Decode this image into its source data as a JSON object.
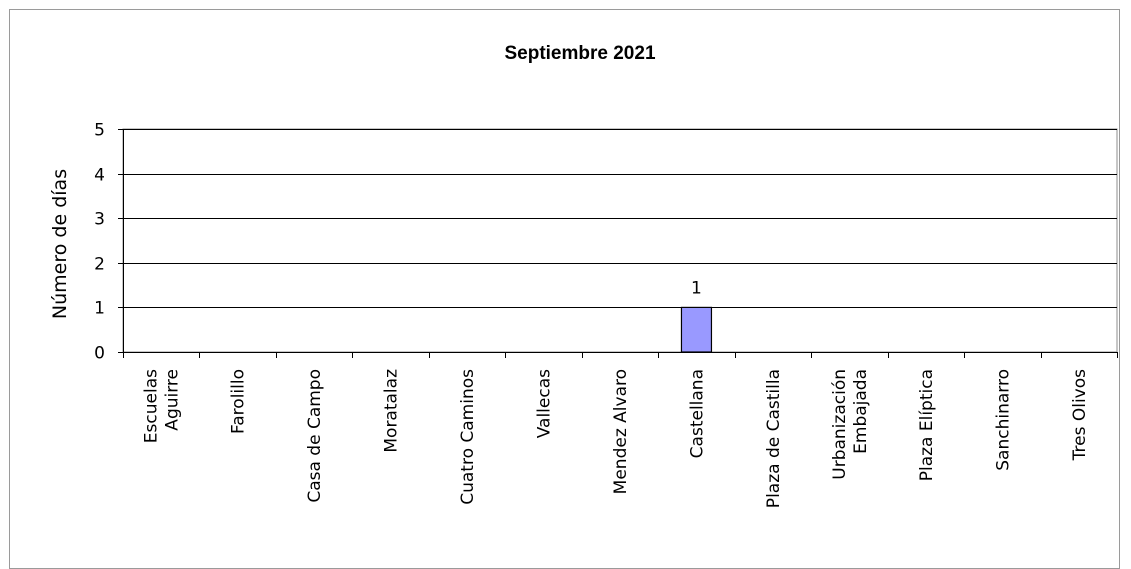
{
  "chart_data": {
    "type": "bar",
    "title": "Septiembre 2021",
    "xlabel": "",
    "ylabel": "Número de días",
    "ylim": [
      0,
      5
    ],
    "yticks": [
      0,
      1,
      2,
      3,
      4,
      5
    ],
    "grid": true,
    "legend": "none",
    "bar_color": "#9999ff",
    "categories": [
      [
        "Escuelas",
        "Aguirre"
      ],
      [
        "Farolillo"
      ],
      [
        "Casa de Campo"
      ],
      [
        "Moratalaz"
      ],
      [
        "Cuatro Caminos"
      ],
      [
        "Vallecas"
      ],
      [
        "Mendez Alvaro"
      ],
      [
        "Castellana"
      ],
      [
        "Plaza de Castilla"
      ],
      [
        "Urbanización",
        "Embajada"
      ],
      [
        "Plaza Elíptica"
      ],
      [
        "Sanchinarro"
      ],
      [
        "Tres Olivos"
      ]
    ],
    "values": [
      0,
      0,
      0,
      0,
      0,
      0,
      0,
      1,
      0,
      0,
      0,
      0,
      0
    ],
    "data_labels": [
      "",
      "",
      "",
      "",
      "",
      "",
      "",
      "1",
      "",
      "",
      "",
      "",
      ""
    ]
  }
}
